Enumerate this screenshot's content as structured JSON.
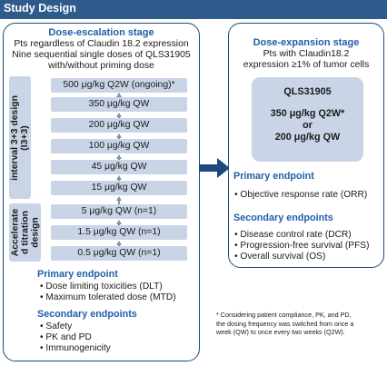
{
  "header": {
    "title": "Study Design"
  },
  "escalation": {
    "title": "Dose-escalation stage",
    "desc": [
      "Pts regardless of Claudin 18.2 expression",
      "Nine sequential single doses of QLS31905",
      "with/without priming dose"
    ],
    "design_label_1": [
      "interval 3+3 design",
      "(I3+3)"
    ],
    "design_label_2": [
      "Accelerate",
      "d titration",
      "design"
    ],
    "doses": [
      "500 μg/kg Q2W (ongoing)*",
      "350 μg/kg QW",
      "200 μg/kg QW",
      "100 μg/kg QW",
      "45 μg/kg QW",
      "15 μg/kg QW",
      "5 μg/kg QW (n=1)",
      "1.5 μg/kg QW (n=1)",
      "0.5 μg/kg QW (n=1)"
    ],
    "primary_title": "Primary endpoint",
    "primary": [
      "• Dose limiting toxicities (DLT)",
      "• Maximum tolerated dose (MTD)"
    ],
    "secondary_title": "Secondary endpoints",
    "secondary": [
      "• Safety",
      "• PK and PD",
      "• Immunogenicity"
    ]
  },
  "expansion": {
    "title": "Dose-expansion stage",
    "desc": [
      "Pts with Claudin18.2",
      "expression ≥1% of tumor cells"
    ],
    "drug": [
      "QLS31905",
      "350 μg/kg Q2W*",
      "or",
      "200 μg/kg QW"
    ],
    "primary_title": "Primary endpoint",
    "primary": [
      "• Objective response rate (ORR)"
    ],
    "secondary_title": "Secondary endpoints",
    "secondary": [
      "• Disease control rate (DCR)",
      "• Progression-free survival (PFS)",
      "• Overall survival (OS)"
    ]
  },
  "footnote": [
    "* Considering patient compliance, PK, and PD,",
    "the dosing frequency was switched from once a",
    "week (QW) to once every two weeks (Q2W)."
  ],
  "colors": {
    "header": "#2e5a8c",
    "accent": "#1f5fa8",
    "box": "#c9d5e6",
    "arrow": "#1f497d"
  }
}
